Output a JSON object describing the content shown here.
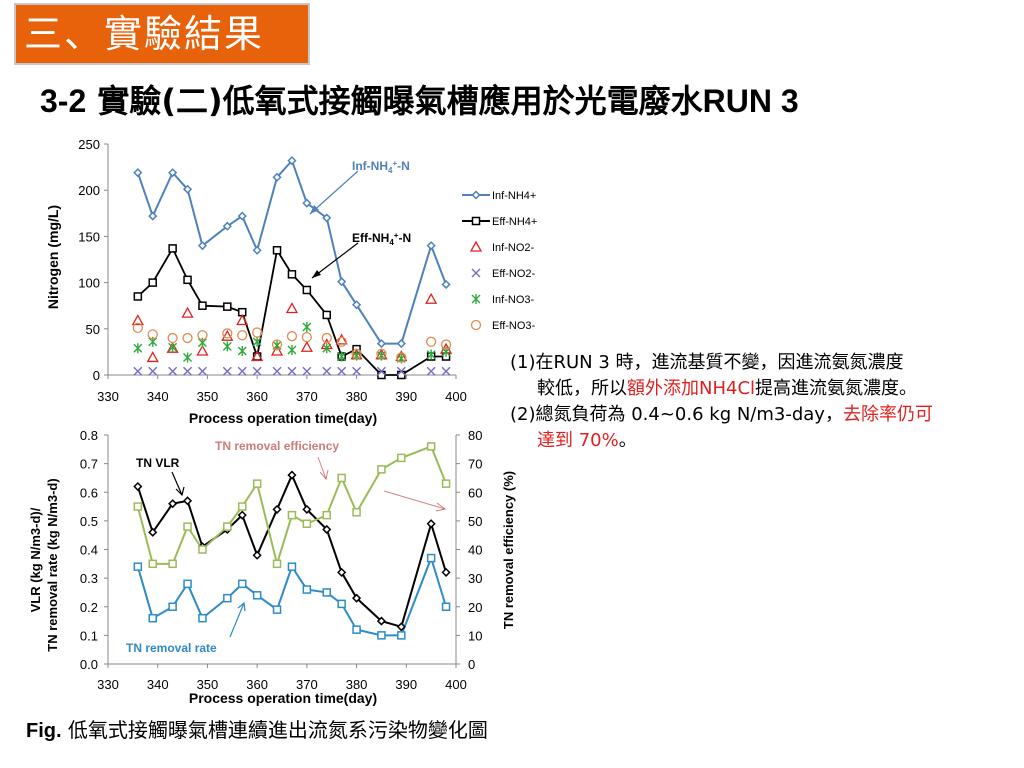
{
  "header": {
    "section_label": "三、實驗結果",
    "title_prefix": "3-2",
    "title_main": "實驗(二)低氧式接觸曝氣槽應用於光電廢水",
    "title_suffix": "RUN 3"
  },
  "notes": {
    "item1_a": "(1)在RUN 3 時，進流基質不變，因進流氨氮濃度",
    "item1_b": "較低，所以",
    "item1_red": "額外添加NH4Cl",
    "item1_c": "提高進流氨氮濃度。",
    "item2_a": "(2)總氮負荷為 0.4~0.6 kg N/m3-day，",
    "item2_red1": "去除率仍可",
    "item2_red2": "達到 70%",
    "item2_end": "。"
  },
  "caption": {
    "bold": "Fig.",
    "text": "低氧式接觸曝氣槽連續進出流氮系污染物變化圖"
  },
  "chart_data": [
    {
      "type": "line",
      "xlabel": "Process operation time(day)",
      "ylabel": "Nitrogen (mg/L)",
      "xlim": [
        330,
        400
      ],
      "ylim": [
        0,
        250
      ],
      "x_ticks": [
        330,
        340,
        350,
        360,
        370,
        380,
        390,
        400
      ],
      "y_ticks": [
        0,
        50,
        100,
        150,
        200,
        250
      ],
      "grid": false,
      "legend_position": "right",
      "annotations": [
        "Inf-NH4+-N",
        "Eff-NH4+-N"
      ],
      "x": [
        336,
        339,
        343,
        346,
        349,
        354,
        357,
        360,
        364,
        367,
        370,
        374,
        377,
        380,
        385,
        389,
        395,
        398
      ],
      "series": [
        {
          "name": "Inf-NH4+",
          "color": "#4f81bd",
          "marker": "diamond",
          "line": true,
          "values": [
            219,
            172,
            219,
            201,
            140,
            161,
            172,
            135,
            214,
            232,
            186,
            170,
            101,
            76,
            34,
            34,
            140,
            98
          ]
        },
        {
          "name": "Eff-NH4+",
          "color": "#000000",
          "marker": "square",
          "line": true,
          "values": [
            85,
            100,
            137,
            103,
            75,
            74,
            68,
            20,
            135,
            109,
            92,
            65,
            20,
            28,
            0,
            0,
            20,
            20
          ]
        },
        {
          "name": "Inf-NO2-",
          "color": "#e02020",
          "marker": "triangle",
          "line": false,
          "values": [
            59,
            19,
            29,
            67,
            26,
            42,
            59,
            20,
            26,
            72,
            30,
            33,
            38,
            22,
            22,
            20,
            82,
            28
          ]
        },
        {
          "name": "Eff-NO2-",
          "color": "#7b68c8",
          "marker": "x",
          "line": false,
          "values": [
            4,
            4,
            4,
            4,
            4,
            4,
            4,
            4,
            4,
            4,
            4,
            4,
            4,
            4,
            4,
            4,
            4,
            4
          ]
        },
        {
          "name": "Inf-NO3-",
          "color": "#2eaa3c",
          "marker": "star",
          "line": false,
          "values": [
            29,
            36,
            30,
            19,
            35,
            31,
            26,
            36,
            32,
            27,
            52,
            29,
            20,
            21,
            21,
            18,
            22,
            25
          ]
        },
        {
          "name": "Eff-NO3-",
          "color": "#e08c50",
          "marker": "circle",
          "line": false,
          "values": [
            51,
            44,
            40,
            40,
            43,
            45,
            43,
            46,
            33,
            42,
            41,
            40,
            36,
            23,
            23,
            19,
            36,
            33
          ]
        }
      ]
    },
    {
      "type": "line",
      "xlabel": "Process operation time(day)",
      "ylabel_left_1": "VLR (kg N/m3-d)/",
      "ylabel_left_2": "TN removal rate (kg N/m3-d)",
      "ylabel_right": "TN  removal efficiency (%)",
      "xlim": [
        330,
        400
      ],
      "ylim_left": [
        0,
        0.8
      ],
      "ylim_right": [
        0,
        80
      ],
      "x_ticks": [
        330,
        340,
        350,
        360,
        370,
        380,
        390,
        400
      ],
      "y_ticks_left": [
        "0.0",
        "0.1",
        "0.2",
        "0.3",
        "0.4",
        "0.5",
        "0.6",
        "0.7",
        "0.8"
      ],
      "y_ticks_right": [
        0,
        10,
        20,
        30,
        40,
        50,
        60,
        70,
        80
      ],
      "annotations": [
        "TN removal efficiency",
        "TN VLR",
        "TN removal rate"
      ],
      "x": [
        336,
        339,
        343,
        346,
        349,
        354,
        357,
        360,
        364,
        367,
        370,
        374,
        377,
        380,
        385,
        389,
        395,
        398
      ],
      "series": [
        {
          "name": "TN VLR",
          "axis": "left",
          "color": "#000000",
          "marker": "diamond",
          "values": [
            0.62,
            0.46,
            0.56,
            0.57,
            0.41,
            0.47,
            0.52,
            0.38,
            0.54,
            0.66,
            0.54,
            0.47,
            0.32,
            0.23,
            0.15,
            0.13,
            0.49,
            0.32
          ]
        },
        {
          "name": "TN removal efficiency",
          "axis": "right",
          "color": "#9bbb59",
          "marker": "square",
          "values": [
            55,
            35,
            35,
            48,
            40,
            48,
            55,
            63,
            35,
            52,
            49,
            52,
            65,
            53,
            68,
            72,
            76,
            63
          ]
        },
        {
          "name": "TN removal rate",
          "axis": "left",
          "color": "#2e8bc9",
          "marker": "square",
          "values": [
            0.34,
            0.16,
            0.2,
            0.28,
            0.16,
            0.23,
            0.28,
            0.24,
            0.19,
            0.34,
            0.26,
            0.25,
            0.21,
            0.12,
            0.1,
            0.1,
            0.37,
            0.2
          ]
        }
      ]
    }
  ]
}
